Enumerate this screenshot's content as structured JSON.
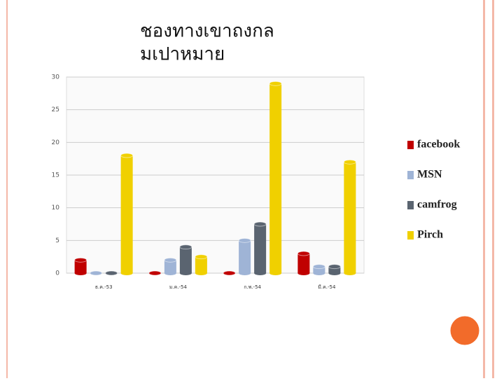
{
  "chart_data": {
    "type": "bar",
    "title_lines": [
      "ชองทางเขาถงกล",
      "มเปาหมาย"
    ],
    "categories": [
      "ธ.ค.-53",
      "ม.ค.-54",
      "ก.พ.-54",
      "มี.ค.-54"
    ],
    "series": [
      {
        "name": "facebook",
        "color": "#c00000",
        "values": [
          2,
          0,
          0,
          3
        ]
      },
      {
        "name": "MSN",
        "color": "#9fb4d6",
        "values": [
          0,
          2,
          5,
          1
        ]
      },
      {
        "name": "camfrog",
        "color": "#5a6470",
        "values": [
          0,
          4,
          7.5,
          1
        ]
      },
      {
        "name": "Pirch",
        "color": "#f0d000",
        "values": [
          18,
          2.5,
          29,
          17
        ]
      }
    ],
    "ylim": [
      0,
      30
    ],
    "yticks": [
      0,
      5,
      10,
      15,
      20,
      25,
      30
    ],
    "grid": true,
    "legend": "right"
  }
}
